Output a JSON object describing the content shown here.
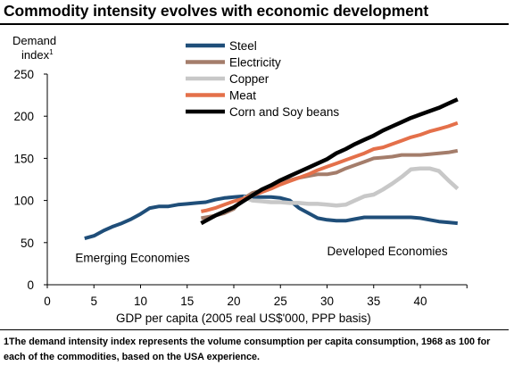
{
  "title": "Commodity intensity evolves with economic development",
  "footnote": "1The demand intensity index represents the volume consumption per capita consumption, 1968 as 100 for each of the commodities, based on the USA experience.",
  "chart_data": {
    "type": "line",
    "title": "Commodity intensity evolves with economic development",
    "ylabel": "Demand index",
    "ylabel_line1": "Demand",
    "ylabel_line2": "index",
    "ylabel_superscript": "1",
    "xlabel": "GDP per capita  (2005 real  US$'000, PPP basis)",
    "xlim": [
      0,
      45
    ],
    "ylim": [
      0,
      250
    ],
    "xticks": [
      0,
      5,
      10,
      15,
      20,
      25,
      30,
      35,
      40
    ],
    "yticks": [
      0,
      50,
      100,
      150,
      200,
      250
    ],
    "grid": false,
    "legend_position": "top-center",
    "annotations": [
      {
        "text": "Emerging Economies",
        "x": 3,
        "y": 27
      },
      {
        "text": "Developed Economies",
        "x": 30,
        "y": 35
      }
    ],
    "series": [
      {
        "name": "Steel",
        "color": "#1f4e79",
        "points": [
          [
            4,
            55
          ],
          [
            5,
            58
          ],
          [
            6,
            64
          ],
          [
            7,
            69
          ],
          [
            8,
            73
          ],
          [
            9,
            78
          ],
          [
            10,
            84
          ],
          [
            11,
            91
          ],
          [
            12,
            93
          ],
          [
            13,
            93
          ],
          [
            14,
            95
          ],
          [
            15,
            96
          ],
          [
            16,
            97
          ],
          [
            17,
            98
          ],
          [
            18,
            101
          ],
          [
            19,
            103
          ],
          [
            20,
            104
          ],
          [
            21,
            105
          ],
          [
            22,
            104
          ],
          [
            23,
            104
          ],
          [
            24,
            104
          ],
          [
            25,
            103
          ],
          [
            26,
            100
          ],
          [
            27,
            91
          ],
          [
            28,
            85
          ],
          [
            29,
            79
          ],
          [
            30,
            77
          ],
          [
            31,
            76
          ],
          [
            32,
            76
          ],
          [
            33,
            78
          ],
          [
            34,
            80
          ],
          [
            35,
            80
          ],
          [
            36,
            80
          ],
          [
            37,
            80
          ],
          [
            38,
            80
          ],
          [
            39,
            80
          ],
          [
            40,
            79
          ],
          [
            41,
            77
          ],
          [
            42,
            75
          ],
          [
            43,
            74
          ],
          [
            44,
            73
          ]
        ]
      },
      {
        "name": "Electricity",
        "color": "#a47d6b",
        "points": [
          [
            16.5,
            79
          ],
          [
            17,
            80
          ],
          [
            18,
            82
          ],
          [
            19,
            85
          ],
          [
            20,
            90
          ],
          [
            21,
            102
          ],
          [
            22,
            109
          ],
          [
            23,
            112
          ],
          [
            24,
            116
          ],
          [
            25,
            120
          ],
          [
            26,
            124
          ],
          [
            27,
            127
          ],
          [
            28,
            129
          ],
          [
            29,
            131
          ],
          [
            30,
            131
          ],
          [
            31,
            133
          ],
          [
            32,
            138
          ],
          [
            33,
            142
          ],
          [
            34,
            146
          ],
          [
            35,
            150
          ],
          [
            36,
            151
          ],
          [
            37,
            152
          ],
          [
            38,
            154
          ],
          [
            39,
            154
          ],
          [
            40,
            154
          ],
          [
            41,
            155
          ],
          [
            42,
            156
          ],
          [
            43,
            157
          ],
          [
            44,
            159
          ]
        ]
      },
      {
        "name": "Copper",
        "color": "#c8c8c8",
        "points": [
          [
            21,
            104
          ],
          [
            22,
            100
          ],
          [
            23,
            99
          ],
          [
            24,
            98
          ],
          [
            25,
            98
          ],
          [
            26,
            97
          ],
          [
            27,
            97
          ],
          [
            28,
            96
          ],
          [
            29,
            96
          ],
          [
            30,
            95
          ],
          [
            31,
            94
          ],
          [
            32,
            95
          ],
          [
            33,
            100
          ],
          [
            34,
            105
          ],
          [
            35,
            107
          ],
          [
            36,
            113
          ],
          [
            37,
            120
          ],
          [
            38,
            128
          ],
          [
            39,
            137
          ],
          [
            40,
            138
          ],
          [
            41,
            138
          ],
          [
            42,
            135
          ],
          [
            43,
            124
          ],
          [
            44,
            114
          ]
        ]
      },
      {
        "name": "Meat",
        "color": "#e4704a",
        "points": [
          [
            16.5,
            87
          ],
          [
            17,
            88
          ],
          [
            18,
            91
          ],
          [
            19,
            95
          ],
          [
            20,
            99
          ],
          [
            21,
            102
          ],
          [
            22,
            106
          ],
          [
            23,
            110
          ],
          [
            24,
            114
          ],
          [
            25,
            119
          ],
          [
            26,
            123
          ],
          [
            27,
            127
          ],
          [
            28,
            131
          ],
          [
            29,
            136
          ],
          [
            30,
            140
          ],
          [
            31,
            144
          ],
          [
            32,
            148
          ],
          [
            33,
            152
          ],
          [
            34,
            156
          ],
          [
            35,
            161
          ],
          [
            36,
            163
          ],
          [
            37,
            167
          ],
          [
            38,
            171
          ],
          [
            39,
            175
          ],
          [
            40,
            178
          ],
          [
            41,
            182
          ],
          [
            42,
            185
          ],
          [
            43,
            188
          ],
          [
            44,
            192
          ]
        ]
      },
      {
        "name": "Corn and Soy beans",
        "color": "#000000",
        "points": [
          [
            16.5,
            73
          ],
          [
            17,
            76
          ],
          [
            18,
            82
          ],
          [
            19,
            87
          ],
          [
            20,
            92
          ],
          [
            21,
            99
          ],
          [
            22,
            106
          ],
          [
            23,
            113
          ],
          [
            24,
            118
          ],
          [
            25,
            124
          ],
          [
            26,
            129
          ],
          [
            27,
            134
          ],
          [
            28,
            139
          ],
          [
            29,
            144
          ],
          [
            30,
            149
          ],
          [
            31,
            156
          ],
          [
            32,
            161
          ],
          [
            33,
            167
          ],
          [
            34,
            172
          ],
          [
            35,
            177
          ],
          [
            36,
            183
          ],
          [
            37,
            188
          ],
          [
            38,
            193
          ],
          [
            39,
            198
          ],
          [
            40,
            202
          ],
          [
            41,
            206
          ],
          [
            42,
            210
          ],
          [
            43,
            215
          ],
          [
            44,
            220
          ]
        ]
      }
    ]
  }
}
